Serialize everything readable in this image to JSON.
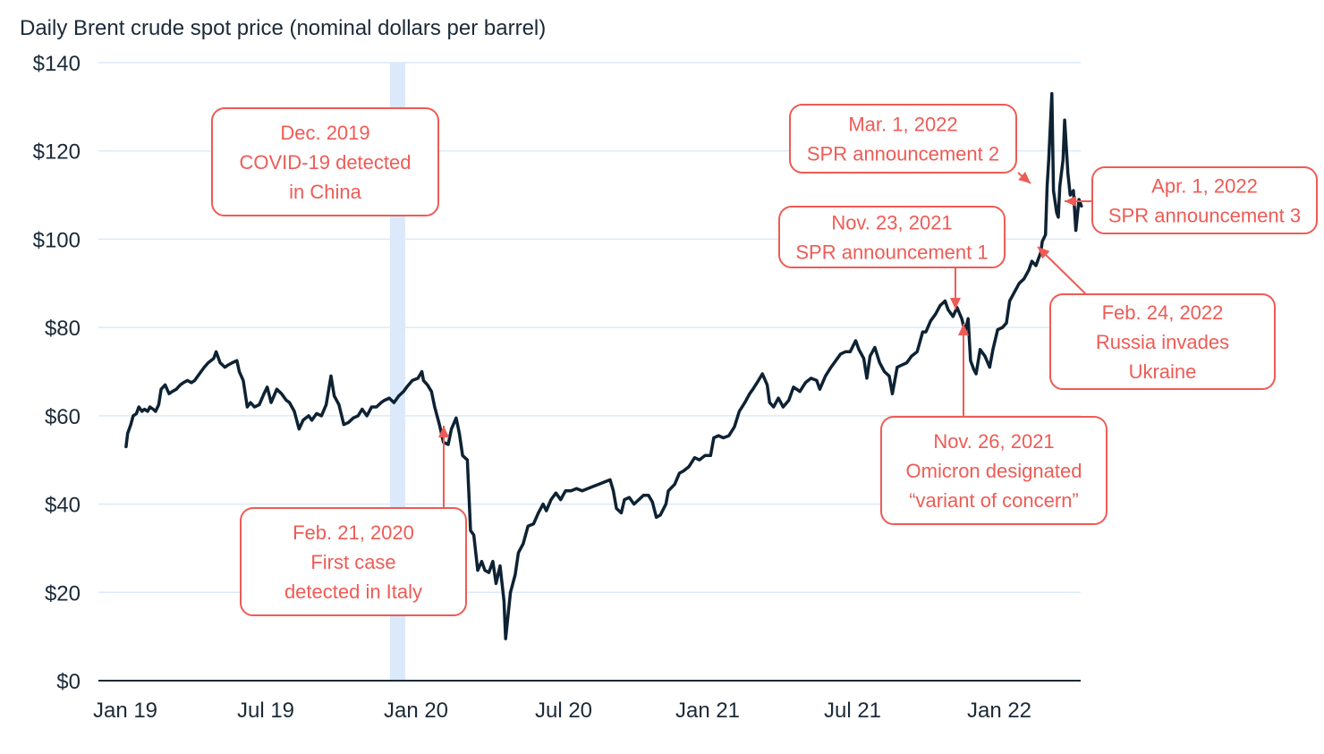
{
  "chart_data": {
    "type": "line",
    "title": "Daily Brent crude spot price (nominal dollars per barrel)",
    "xlabel": "",
    "ylabel": "",
    "ylim": [
      0,
      140
    ],
    "xlim": [
      "2019-01-01",
      "2022-04-25"
    ],
    "grid": true,
    "y_ticks": [
      {
        "value": 0,
        "label": "$0"
      },
      {
        "value": 20,
        "label": "$20"
      },
      {
        "value": 40,
        "label": "$40"
      },
      {
        "value": 60,
        "label": "$60"
      },
      {
        "value": 80,
        "label": "$80"
      },
      {
        "value": 100,
        "label": "$100"
      },
      {
        "value": 120,
        "label": "$120"
      },
      {
        "value": 140,
        "label": "$140"
      }
    ],
    "x_ticks": [
      {
        "date": "2019-01-01",
        "label": "Jan 19"
      },
      {
        "date": "2019-07-01",
        "label": "Jul 19"
      },
      {
        "date": "2020-01-01",
        "label": "Jan 20"
      },
      {
        "date": "2020-07-01",
        "label": "Jul 20"
      },
      {
        "date": "2021-01-01",
        "label": "Jan 21"
      },
      {
        "date": "2021-07-01",
        "label": "Jul 21"
      },
      {
        "date": "2022-01-01",
        "label": "Jan 22"
      }
    ],
    "highlight_band": {
      "start": "2019-12-01",
      "end": "2019-12-31",
      "color": "#dbe9fb"
    },
    "series": [
      {
        "color": "#0d2233",
        "points": [
          [
            "2019-01-02",
            53
          ],
          [
            "2019-01-04",
            56
          ],
          [
            "2019-01-08",
            58
          ],
          [
            "2019-01-11",
            60
          ],
          [
            "2019-01-15",
            60.5
          ],
          [
            "2019-01-18",
            62
          ],
          [
            "2019-01-22",
            61
          ],
          [
            "2019-01-25",
            61.5
          ],
          [
            "2019-01-29",
            61
          ],
          [
            "2019-02-01",
            62
          ],
          [
            "2019-02-05",
            61.5
          ],
          [
            "2019-02-08",
            61
          ],
          [
            "2019-02-12",
            62.5
          ],
          [
            "2019-02-15",
            66
          ],
          [
            "2019-02-20",
            67
          ],
          [
            "2019-02-25",
            65
          ],
          [
            "2019-03-01",
            65.5
          ],
          [
            "2019-03-06",
            66
          ],
          [
            "2019-03-11",
            67
          ],
          [
            "2019-03-15",
            67.5
          ],
          [
            "2019-03-20",
            68
          ],
          [
            "2019-03-25",
            67.5
          ],
          [
            "2019-03-29",
            68
          ],
          [
            "2019-04-04",
            69.5
          ],
          [
            "2019-04-10",
            71
          ],
          [
            "2019-04-15",
            72
          ],
          [
            "2019-04-22",
            73
          ],
          [
            "2019-04-25",
            74.5
          ],
          [
            "2019-04-30",
            72
          ],
          [
            "2019-05-06",
            71
          ],
          [
            "2019-05-10",
            71.5
          ],
          [
            "2019-05-15",
            72
          ],
          [
            "2019-05-21",
            72.5
          ],
          [
            "2019-05-24",
            70
          ],
          [
            "2019-05-29",
            68
          ],
          [
            "2019-06-03",
            62
          ],
          [
            "2019-06-07",
            63
          ],
          [
            "2019-06-12",
            62
          ],
          [
            "2019-06-18",
            62.5
          ],
          [
            "2019-06-24",
            65
          ],
          [
            "2019-06-28",
            66.5
          ],
          [
            "2019-07-03",
            63
          ],
          [
            "2019-07-10",
            66
          ],
          [
            "2019-07-16",
            65
          ],
          [
            "2019-07-22",
            63.5
          ],
          [
            "2019-07-26",
            63
          ],
          [
            "2019-08-01",
            61
          ],
          [
            "2019-08-07",
            57
          ],
          [
            "2019-08-12",
            59
          ],
          [
            "2019-08-19",
            60
          ],
          [
            "2019-08-23",
            59
          ],
          [
            "2019-08-29",
            60.5
          ],
          [
            "2019-09-04",
            60
          ],
          [
            "2019-09-10",
            62.5
          ],
          [
            "2019-09-16",
            69
          ],
          [
            "2019-09-20",
            64.5
          ],
          [
            "2019-09-26",
            62.5
          ],
          [
            "2019-10-02",
            58
          ],
          [
            "2019-10-08",
            58.5
          ],
          [
            "2019-10-14",
            59.5
          ],
          [
            "2019-10-20",
            60
          ],
          [
            "2019-10-25",
            61.5
          ],
          [
            "2019-10-31",
            60
          ],
          [
            "2019-11-06",
            62
          ],
          [
            "2019-11-12",
            62
          ],
          [
            "2019-11-18",
            63
          ],
          [
            "2019-11-22",
            63.5
          ],
          [
            "2019-11-28",
            64
          ],
          [
            "2019-12-04",
            63
          ],
          [
            "2019-12-10",
            64.5
          ],
          [
            "2019-12-16",
            65.5
          ],
          [
            "2019-12-20",
            66.5
          ],
          [
            "2019-12-27",
            68
          ],
          [
            "2020-01-03",
            68.5
          ],
          [
            "2020-01-08",
            70
          ],
          [
            "2020-01-10",
            68
          ],
          [
            "2020-01-15",
            67
          ],
          [
            "2020-01-20",
            65.5
          ],
          [
            "2020-01-24",
            62
          ],
          [
            "2020-01-30",
            58
          ],
          [
            "2020-02-04",
            54
          ],
          [
            "2020-02-10",
            53.5
          ],
          [
            "2020-02-14",
            57
          ],
          [
            "2020-02-20",
            59.5
          ],
          [
            "2020-02-24",
            56
          ],
          [
            "2020-02-28",
            51
          ],
          [
            "2020-03-05",
            50
          ],
          [
            "2020-03-09",
            34
          ],
          [
            "2020-03-13",
            33
          ],
          [
            "2020-03-18",
            25
          ],
          [
            "2020-03-23",
            27
          ],
          [
            "2020-03-27",
            25
          ],
          [
            "2020-04-01",
            24.5
          ],
          [
            "2020-04-06",
            27
          ],
          [
            "2020-04-10",
            22
          ],
          [
            "2020-04-15",
            26
          ],
          [
            "2020-04-20",
            18
          ],
          [
            "2020-04-22",
            9.5
          ],
          [
            "2020-04-28",
            20
          ],
          [
            "2020-05-04",
            24
          ],
          [
            "2020-05-08",
            29
          ],
          [
            "2020-05-14",
            31
          ],
          [
            "2020-05-20",
            35
          ],
          [
            "2020-05-27",
            35.5
          ],
          [
            "2020-06-02",
            38
          ],
          [
            "2020-06-08",
            40
          ],
          [
            "2020-06-12",
            38.5
          ],
          [
            "2020-06-18",
            41
          ],
          [
            "2020-06-24",
            42.5
          ],
          [
            "2020-06-30",
            41
          ],
          [
            "2020-07-06",
            43
          ],
          [
            "2020-07-13",
            43
          ],
          [
            "2020-07-20",
            43.5
          ],
          [
            "2020-07-27",
            43
          ],
          [
            "2020-08-03",
            43.5
          ],
          [
            "2020-08-10",
            44
          ],
          [
            "2020-08-17",
            44.5
          ],
          [
            "2020-08-24",
            45
          ],
          [
            "2020-08-31",
            45.5
          ],
          [
            "2020-09-04",
            43
          ],
          [
            "2020-09-08",
            39
          ],
          [
            "2020-09-14",
            38
          ],
          [
            "2020-09-18",
            41
          ],
          [
            "2020-09-24",
            41.5
          ],
          [
            "2020-09-30",
            40
          ],
          [
            "2020-10-06",
            41
          ],
          [
            "2020-10-12",
            42
          ],
          [
            "2020-10-18",
            42
          ],
          [
            "2020-10-23",
            40.5
          ],
          [
            "2020-10-28",
            37
          ],
          [
            "2020-11-02",
            37.5
          ],
          [
            "2020-11-09",
            40
          ],
          [
            "2020-11-12",
            43
          ],
          [
            "2020-11-20",
            44.5
          ],
          [
            "2020-11-26",
            47
          ],
          [
            "2020-12-01",
            47.5
          ],
          [
            "2020-12-08",
            48.5
          ],
          [
            "2020-12-15",
            50.5
          ],
          [
            "2020-12-21",
            50
          ],
          [
            "2020-12-28",
            51
          ],
          [
            "2021-01-04",
            51
          ],
          [
            "2021-01-08",
            55
          ],
          [
            "2021-01-14",
            55.5
          ],
          [
            "2021-01-20",
            55
          ],
          [
            "2021-01-27",
            55.5
          ],
          [
            "2021-02-03",
            57.5
          ],
          [
            "2021-02-09",
            61
          ],
          [
            "2021-02-16",
            63
          ],
          [
            "2021-02-22",
            65
          ],
          [
            "2021-02-26",
            66
          ],
          [
            "2021-03-05",
            68
          ],
          [
            "2021-03-10",
            69.5
          ],
          [
            "2021-03-16",
            67
          ],
          [
            "2021-03-19",
            63
          ],
          [
            "2021-03-24",
            62
          ],
          [
            "2021-03-30",
            64
          ],
          [
            "2021-04-05",
            62
          ],
          [
            "2021-04-12",
            63.5
          ],
          [
            "2021-04-18",
            66.5
          ],
          [
            "2021-04-26",
            65.5
          ],
          [
            "2021-05-03",
            67.5
          ],
          [
            "2021-05-10",
            68.5
          ],
          [
            "2021-05-17",
            68
          ],
          [
            "2021-05-21",
            66
          ],
          [
            "2021-05-28",
            69
          ],
          [
            "2021-06-04",
            71
          ],
          [
            "2021-06-10",
            72.5
          ],
          [
            "2021-06-16",
            74
          ],
          [
            "2021-06-22",
            74.5
          ],
          [
            "2021-06-28",
            74.5
          ],
          [
            "2021-07-05",
            77
          ],
          [
            "2021-07-09",
            75
          ],
          [
            "2021-07-15",
            73
          ],
          [
            "2021-07-19",
            68.5
          ],
          [
            "2021-07-23",
            73.5
          ],
          [
            "2021-07-29",
            75.5
          ],
          [
            "2021-08-04",
            72
          ],
          [
            "2021-08-10",
            70
          ],
          [
            "2021-08-16",
            69
          ],
          [
            "2021-08-20",
            65
          ],
          [
            "2021-08-26",
            71
          ],
          [
            "2021-09-01",
            71.5
          ],
          [
            "2021-09-07",
            72
          ],
          [
            "2021-09-13",
            73.5
          ],
          [
            "2021-09-20",
            74.5
          ],
          [
            "2021-09-27",
            79
          ],
          [
            "2021-10-01",
            79
          ],
          [
            "2021-10-07",
            81.5
          ],
          [
            "2021-10-13",
            83
          ],
          [
            "2021-10-19",
            85
          ],
          [
            "2021-10-25",
            86
          ],
          [
            "2021-10-29",
            84
          ],
          [
            "2021-11-04",
            82.5
          ],
          [
            "2021-11-09",
            84.5
          ],
          [
            "2021-11-15",
            82
          ],
          [
            "2021-11-19",
            79
          ],
          [
            "2021-11-23",
            82
          ],
          [
            "2021-11-26",
            72.5
          ],
          [
            "2021-11-30",
            70.5
          ],
          [
            "2021-12-03",
            69.5
          ],
          [
            "2021-12-08",
            75
          ],
          [
            "2021-12-14",
            73.5
          ],
          [
            "2021-12-20",
            71
          ],
          [
            "2021-12-24",
            75
          ],
          [
            "2021-12-30",
            79.5
          ],
          [
            "2022-01-05",
            80
          ],
          [
            "2022-01-10",
            81
          ],
          [
            "2022-01-14",
            86
          ],
          [
            "2022-01-20",
            88
          ],
          [
            "2022-01-26",
            90
          ],
          [
            "2022-02-01",
            91
          ],
          [
            "2022-02-07",
            93
          ],
          [
            "2022-02-11",
            95
          ],
          [
            "2022-02-16",
            94
          ],
          [
            "2022-02-22",
            97
          ],
          [
            "2022-02-24",
            99.5
          ],
          [
            "2022-02-28",
            101
          ],
          [
            "2022-03-02",
            112
          ],
          [
            "2022-03-04",
            118
          ],
          [
            "2022-03-08",
            133
          ],
          [
            "2022-03-10",
            111
          ],
          [
            "2022-03-14",
            106
          ],
          [
            "2022-03-16",
            105
          ],
          [
            "2022-03-18",
            112
          ],
          [
            "2022-03-22",
            118
          ],
          [
            "2022-03-24",
            127
          ],
          [
            "2022-03-28",
            115
          ],
          [
            "2022-03-31",
            110
          ],
          [
            "2022-04-04",
            111
          ],
          [
            "2022-04-07",
            102
          ],
          [
            "2022-04-11",
            109
          ],
          [
            "2022-04-14",
            107.5
          ]
        ]
      }
    ],
    "annotations": [
      {
        "lines": [
          "Dec. 2019",
          "COVID-19 detected",
          "in China"
        ]
      },
      {
        "lines": [
          "Feb. 21, 2020",
          "First case",
          "detected in Italy"
        ],
        "date": "2020-02-21",
        "value": 57
      },
      {
        "lines": [
          "Nov. 23, 2021",
          "SPR announcement 1"
        ],
        "date": "2021-11-23",
        "value": 83
      },
      {
        "lines": [
          "Nov. 26, 2021",
          "Omicron designated",
          "“variant of concern”"
        ],
        "date": "2021-11-26",
        "value": 80
      },
      {
        "lines": [
          "Mar. 1, 2022",
          "SPR announcement 2"
        ],
        "date": "2022-03-01",
        "value": 112
      },
      {
        "lines": [
          "Feb. 24, 2022",
          "Russia invades",
          "Ukraine"
        ],
        "date": "2022-02-24",
        "value": 99
      },
      {
        "lines": [
          "Apr. 1, 2022",
          "SPR announcement 3"
        ],
        "date": "2022-04-01",
        "value": 108
      }
    ],
    "colors": {
      "line": "#0d2233",
      "annotation": "#ee5b55",
      "grid": "#dbe9fb",
      "axis": "#1b2a38",
      "band": "#dbe9fb"
    }
  }
}
